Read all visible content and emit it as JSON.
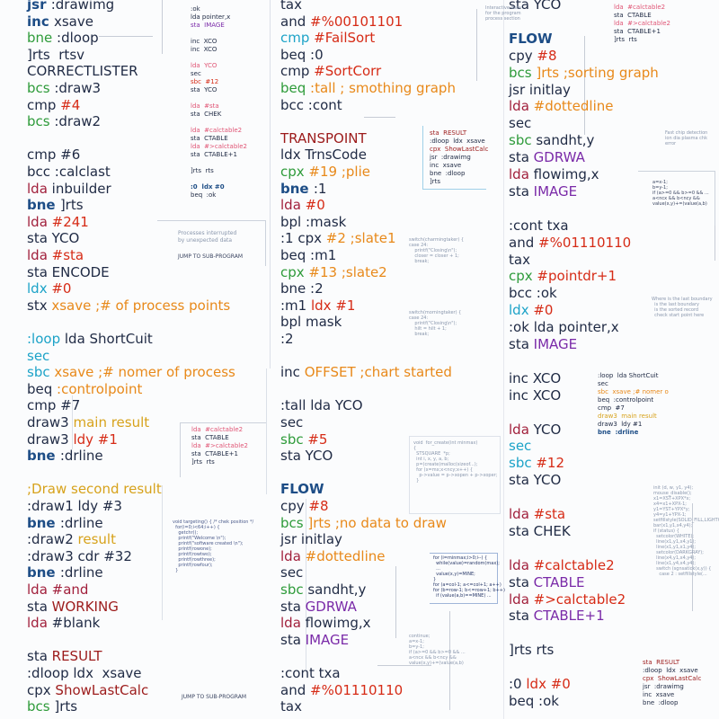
{
  "col1": [
    [
      [
        "jsr ",
        "c-db"
      ],
      [
        ":drawimg",
        "c-k"
      ]
    ],
    [
      [
        "inc ",
        "c-db"
      ],
      [
        "xsave",
        "c-k"
      ]
    ],
    [
      [
        "bne ",
        "c-g"
      ],
      [
        ":dloop",
        "c-k"
      ]
    ],
    [
      [
        "]rts  ",
        "c-k"
      ],
      [
        "rtsv",
        "c-k"
      ]
    ],
    [
      [
        "CORRECTLISTER",
        "c-k"
      ]
    ],
    [
      [
        "bcs ",
        "c-g"
      ],
      [
        ":draw3",
        "c-k"
      ]
    ],
    [
      [
        "cmp ",
        "c-k"
      ],
      [
        "#4",
        "c-r"
      ]
    ],
    [
      [
        "bcs ",
        "c-g"
      ],
      [
        ":draw2",
        "c-k"
      ]
    ],
    [
      [
        "",
        ""
      ]
    ],
    [
      [
        "cmp ",
        "c-k"
      ],
      [
        "#6",
        "c-k"
      ]
    ],
    [
      [
        "bcc ",
        "c-k"
      ],
      [
        ":calclast",
        "c-k"
      ]
    ],
    [
      [
        "lda ",
        "c-m"
      ],
      [
        "inbuilder",
        "c-k"
      ]
    ],
    [
      [
        "bne ",
        "c-db"
      ],
      [
        "]rts",
        "c-k"
      ]
    ],
    [
      [
        "lda ",
        "c-m"
      ],
      [
        "#241",
        "c-r"
      ]
    ],
    [
      [
        "sta ",
        "c-k"
      ],
      [
        "YCO",
        "c-k"
      ]
    ],
    [
      [
        "lda ",
        "c-m"
      ],
      [
        "#sta",
        "c-r"
      ]
    ],
    [
      [
        "sta ",
        "c-k"
      ],
      [
        "ENCODE",
        "c-k"
      ]
    ],
    [
      [
        "ldx ",
        "c-c"
      ],
      [
        "#0",
        "c-r"
      ]
    ],
    [
      [
        "stx ",
        "c-k"
      ],
      [
        "xsave ;# of process points",
        "c-o"
      ]
    ],
    [
      [
        "",
        ""
      ]
    ],
    [
      [
        ":loop ",
        "c-c"
      ],
      [
        "lda ShortCuit",
        "c-k"
      ]
    ],
    [
      [
        "sec",
        "c-c"
      ]
    ],
    [
      [
        "sbc ",
        "c-c"
      ],
      [
        "xsave ;# nomer of process",
        "c-o"
      ]
    ],
    [
      [
        "beq ",
        "c-k"
      ],
      [
        ":controlpoint",
        "c-o"
      ]
    ],
    [
      [
        "cmp ",
        "c-k"
      ],
      [
        "#7",
        "c-k"
      ]
    ],
    [
      [
        "draw3 ",
        "c-k"
      ],
      [
        "main result",
        "c-y"
      ]
    ],
    [
      [
        "draw3 ",
        "c-k"
      ],
      [
        "ldy #1",
        "c-r"
      ]
    ],
    [
      [
        "bne ",
        "c-db"
      ],
      [
        ":drline",
        "c-k"
      ]
    ],
    [
      [
        "",
        ""
      ]
    ],
    [
      [
        ";Draw ",
        "c-y"
      ],
      [
        "second result",
        "c-y"
      ]
    ],
    [
      [
        ":draw1 ",
        "c-k"
      ],
      [
        "ldy #3",
        "c-k"
      ]
    ],
    [
      [
        "bne ",
        "c-db"
      ],
      [
        ":drline",
        "c-k"
      ]
    ],
    [
      [
        ":draw2 ",
        "c-k"
      ],
      [
        "result",
        "c-y"
      ]
    ],
    [
      [
        ":draw3 ",
        "c-k"
      ],
      [
        "cdr #32",
        "c-k"
      ]
    ],
    [
      [
        "bne ",
        "c-db"
      ],
      [
        ":drline",
        "c-k"
      ]
    ],
    [
      [
        "lda #and",
        "c-m"
      ]
    ],
    [
      [
        "sta ",
        "c-k"
      ],
      [
        "WORKING",
        "c-dr"
      ]
    ],
    [
      [
        "lda ",
        "c-m"
      ],
      [
        "#blank",
        "c-k"
      ]
    ],
    [
      [
        "",
        ""
      ]
    ],
    [
      [
        "sta ",
        "c-k"
      ],
      [
        "RESULT",
        "c-dr"
      ]
    ],
    [
      [
        ":dloop ",
        "c-k"
      ],
      [
        "ldx  ",
        "c-k"
      ],
      [
        "xsave",
        "c-k"
      ]
    ],
    [
      [
        "cpx ",
        "c-k"
      ],
      [
        "ShowLastCalc",
        "c-dr"
      ]
    ],
    [
      [
        "bcs ",
        "c-g"
      ],
      [
        "]rts",
        "c-k"
      ]
    ]
  ],
  "col3": [
    [
      [
        "tax ",
        "c-k"
      ]
    ],
    [
      [
        "and ",
        "c-k"
      ],
      [
        "#%00101101",
        "c-r"
      ]
    ],
    [
      [
        "cmp ",
        "c-c"
      ],
      [
        "#FailSort",
        "c-r"
      ]
    ],
    [
      [
        "beq ",
        "c-k"
      ],
      [
        ":0",
        "c-k"
      ]
    ],
    [
      [
        "cmp ",
        "c-k"
      ],
      [
        "#SortCorr",
        "c-r"
      ]
    ],
    [
      [
        "beq ",
        "c-g"
      ],
      [
        ":tall ; smothing graph",
        "c-o"
      ]
    ],
    [
      [
        "bcc ",
        "c-k"
      ],
      [
        ":cont",
        "c-k"
      ]
    ],
    [
      [
        "",
        ""
      ]
    ],
    [
      [
        "TRANSPOINT",
        "c-dr"
      ]
    ],
    [
      [
        "ldx ",
        "c-k"
      ],
      [
        "TrnsCode",
        "c-k"
      ]
    ],
    [
      [
        "cpx ",
        "c-g"
      ],
      [
        "#19 ;plie",
        "c-o"
      ]
    ],
    [
      [
        "bne ",
        "c-db"
      ],
      [
        ":1",
        "c-k"
      ]
    ],
    [
      [
        "lda ",
        "c-m"
      ],
      [
        "#0",
        "c-r"
      ]
    ],
    [
      [
        "bpl ",
        "c-k"
      ],
      [
        ":mask",
        "c-k"
      ]
    ],
    [
      [
        ":1 cpx ",
        "c-k"
      ],
      [
        "#2 ;slate1",
        "c-o"
      ]
    ],
    [
      [
        "beq ",
        "c-k"
      ],
      [
        ":m1",
        "c-k"
      ]
    ],
    [
      [
        "cpx ",
        "c-g"
      ],
      [
        "#13 ;slate2",
        "c-o"
      ]
    ],
    [
      [
        "bne ",
        "c-k"
      ],
      [
        ":2",
        "c-k"
      ]
    ],
    [
      [
        ":m1 ",
        "c-k"
      ],
      [
        "ldx #1",
        "c-r"
      ]
    ],
    [
      [
        "bpl ",
        "c-k"
      ],
      [
        "mask",
        "c-k"
      ]
    ],
    [
      [
        ":2",
        "c-k"
      ]
    ],
    [
      [
        "",
        ""
      ]
    ],
    [
      [
        "inc ",
        "c-k"
      ],
      [
        "OFFSET ;chart started",
        "c-o"
      ]
    ],
    [
      [
        "",
        ""
      ]
    ],
    [
      [
        ":tall ",
        "c-k"
      ],
      [
        "lda YCO",
        "c-k"
      ]
    ],
    [
      [
        "sec",
        "c-k"
      ]
    ],
    [
      [
        "sbc ",
        "c-g"
      ],
      [
        "#5",
        "c-r"
      ]
    ],
    [
      [
        "sta ",
        "c-k"
      ],
      [
        "YCO",
        "c-k"
      ]
    ],
    [
      [
        "",
        ""
      ]
    ],
    [
      [
        "FLOW",
        "c-db"
      ]
    ],
    [
      [
        "cpy ",
        "c-k"
      ],
      [
        "#8",
        "c-r"
      ]
    ],
    [
      [
        "bcs ",
        "c-g"
      ],
      [
        "]rts ;no data to draw",
        "c-o"
      ]
    ],
    [
      [
        "jsr ",
        "c-k"
      ],
      [
        "initlay",
        "c-k"
      ]
    ],
    [
      [
        "lda ",
        "c-m"
      ],
      [
        "#dottedline",
        "c-o"
      ]
    ],
    [
      [
        "sec",
        "c-k"
      ]
    ],
    [
      [
        "sbc ",
        "c-g"
      ],
      [
        "sandht,y",
        "c-k"
      ]
    ],
    [
      [
        "sta ",
        "c-k"
      ],
      [
        "GDRWA",
        "c-pu"
      ]
    ],
    [
      [
        "lda ",
        "c-m"
      ],
      [
        "flowimg,x",
        "c-k"
      ]
    ],
    [
      [
        "sta ",
        "c-k"
      ],
      [
        "IMAGE",
        "c-pu"
      ]
    ],
    [
      [
        "",
        ""
      ]
    ],
    [
      [
        ":cont ",
        "c-k"
      ],
      [
        "txa",
        "c-k"
      ]
    ],
    [
      [
        "and ",
        "c-k"
      ],
      [
        "#%01110110",
        "c-r"
      ]
    ],
    [
      [
        "tax",
        "c-k"
      ]
    ]
  ],
  "col4": [
    [
      [
        "sta ",
        "c-k"
      ],
      [
        "YCO",
        "c-k"
      ]
    ],
    [
      [
        "",
        ""
      ]
    ],
    [
      [
        "FLOW",
        "c-db"
      ]
    ],
    [
      [
        "cpy ",
        "c-k"
      ],
      [
        "#8",
        "c-r"
      ]
    ],
    [
      [
        "bcs ",
        "c-g"
      ],
      [
        "]rts ;sorting graph",
        "c-o"
      ]
    ],
    [
      [
        "jsr ",
        "c-k"
      ],
      [
        "initlay",
        "c-k"
      ]
    ],
    [
      [
        "lda ",
        "c-m"
      ],
      [
        "#dottedline",
        "c-o"
      ]
    ],
    [
      [
        "sec",
        "c-k"
      ]
    ],
    [
      [
        "sbc ",
        "c-g"
      ],
      [
        "sandht,y",
        "c-k"
      ]
    ],
    [
      [
        "sta ",
        "c-k"
      ],
      [
        "GDRWA",
        "c-pu"
      ]
    ],
    [
      [
        "lda ",
        "c-m"
      ],
      [
        "flowimg,x",
        "c-k"
      ]
    ],
    [
      [
        "sta ",
        "c-k"
      ],
      [
        "IMAGE",
        "c-pu"
      ]
    ],
    [
      [
        "",
        ""
      ]
    ],
    [
      [
        ":cont ",
        "c-k"
      ],
      [
        "txa",
        "c-k"
      ]
    ],
    [
      [
        "and ",
        "c-k"
      ],
      [
        "#%01110110",
        "c-r"
      ]
    ],
    [
      [
        "tax",
        "c-k"
      ]
    ],
    [
      [
        "cpx ",
        "c-g"
      ],
      [
        "#pointdr+1",
        "c-r"
      ]
    ],
    [
      [
        "bcc ",
        "c-k"
      ],
      [
        ":ok",
        "c-k"
      ]
    ],
    [
      [
        "ldx ",
        "c-c"
      ],
      [
        "#0",
        "c-r"
      ]
    ],
    [
      [
        ":ok ",
        "c-k"
      ],
      [
        "lda pointer,x",
        "c-k"
      ]
    ],
    [
      [
        "sta ",
        "c-k"
      ],
      [
        "IMAGE",
        "c-pu"
      ]
    ],
    [
      [
        "",
        ""
      ]
    ],
    [
      [
        "inc ",
        "c-k"
      ],
      [
        "XCO",
        "c-k"
      ]
    ],
    [
      [
        "inc ",
        "c-k"
      ],
      [
        "XCO",
        "c-k"
      ]
    ],
    [
      [
        "",
        ""
      ]
    ],
    [
      [
        "lda ",
        "c-m"
      ],
      [
        "YCO",
        "c-k"
      ]
    ],
    [
      [
        "sec",
        "c-c"
      ]
    ],
    [
      [
        "sbc ",
        "c-c"
      ],
      [
        "#12",
        "c-r"
      ]
    ],
    [
      [
        "sta ",
        "c-k"
      ],
      [
        "YCO",
        "c-k"
      ]
    ],
    [
      [
        "",
        ""
      ]
    ],
    [
      [
        "lda ",
        "c-m"
      ],
      [
        "#sta",
        "c-r"
      ]
    ],
    [
      [
        "sta ",
        "c-k"
      ],
      [
        "CHEK",
        "c-k"
      ]
    ],
    [
      [
        "",
        ""
      ]
    ],
    [
      [
        "lda ",
        "c-m"
      ],
      [
        "#calctable2",
        "c-r"
      ]
    ],
    [
      [
        "sta ",
        "c-k"
      ],
      [
        "CTABLE",
        "c-pu"
      ]
    ],
    [
      [
        "lda ",
        "c-m"
      ],
      [
        "#>calctable2",
        "c-r"
      ]
    ],
    [
      [
        "sta ",
        "c-k"
      ],
      [
        "CTABLE+1",
        "c-pu"
      ]
    ],
    [
      [
        "",
        ""
      ]
    ],
    [
      [
        "]rts ",
        "c-k"
      ],
      [
        "rts",
        "c-k"
      ]
    ],
    [
      [
        "",
        ""
      ]
    ],
    [
      [
        ":0 ",
        "c-k"
      ],
      [
        "ldx #0",
        "c-r"
      ]
    ],
    [
      [
        "beq ",
        "c-k"
      ],
      [
        ":ok",
        "c-k"
      ]
    ]
  ],
  "small_blocks": [
    {
      "id": "sb1",
      "lines": [
        [
          ":ok  ",
          "c-k"
        ],
        [
          "lda pointer,x",
          "c-k"
        ],
        [
          "sta  IMAGE",
          "c-pu"
        ],
        [
          "",
          ""
        ],
        [
          "inc  XCO",
          "c-k"
        ],
        [
          "inc  XCO",
          "c-k"
        ],
        [
          "",
          ""
        ],
        [
          "lda  YCO",
          "c-pk"
        ],
        [
          "sec",
          "c-k"
        ],
        [
          "sbc  #12",
          "c-r"
        ],
        [
          "sta  YCO",
          "c-k"
        ],
        [
          "",
          ""
        ],
        [
          "lda  #sta",
          "c-pk"
        ],
        [
          "sta  CHEK",
          "c-k"
        ],
        [
          "",
          ""
        ],
        [
          "lda  #calctable2",
          "c-pk"
        ],
        [
          "sta  CTABLE",
          "c-k"
        ],
        [
          "lda  #>calctable2",
          "c-pk"
        ],
        [
          "sta  CTABLE+1",
          "c-k"
        ],
        [
          "",
          ""
        ],
        [
          "]rts  rts",
          "c-k"
        ],
        [
          "",
          ""
        ],
        [
          ":0  ldx #0",
          "c-db"
        ],
        [
          "beq  :ok",
          "c-k"
        ]
      ]
    },
    {
      "id": "sb2",
      "lines": [
        [
          "lda  #calctable2",
          "c-pk"
        ],
        [
          "sta  CTABLE",
          "c-k"
        ],
        [
          "lda  #>calctable2",
          "c-pk"
        ],
        [
          "sta  CTABLE+1",
          "c-k"
        ],
        [
          "]rts  rts",
          "c-k"
        ]
      ]
    },
    {
      "id": "sb3",
      "lines": [
        [
          "sta  RESULT",
          "c-dr"
        ],
        [
          ":dloop  ldx  xsave",
          "c-k"
        ],
        [
          "cpx  ShowLastCalc",
          "c-dr"
        ],
        [
          "jsr  :drawimg",
          "c-k"
        ],
        [
          "inc  xsave",
          "c-k"
        ],
        [
          "bne  :dloop",
          "c-k"
        ],
        [
          "]rts",
          "c-k"
        ]
      ]
    },
    {
      "id": "sb4",
      "lines": [
        [
          ":loop  lda ShortCuit",
          "c-k"
        ],
        [
          "sec",
          "c-k"
        ],
        [
          "sbc  xsave ;# nomer o",
          "c-o"
        ],
        [
          "beq  :controlpoint",
          "c-k"
        ],
        [
          "cmp  #7",
          "c-k"
        ],
        [
          "draw3  main result",
          "c-y"
        ],
        [
          "draw3  ldy #1",
          "c-k"
        ],
        [
          "bne  :drline",
          "c-db"
        ]
      ]
    },
    {
      "id": "sb5",
      "lines": [
        [
          "sta  RESULT",
          "c-dr"
        ],
        [
          ":dloop  ldx  xsave",
          "c-k"
        ],
        [
          "cpx  ShowLastCalc",
          "c-dr"
        ],
        [
          "jsr  :drawimg",
          "c-k"
        ],
        [
          "inc  xsave",
          "c-k"
        ],
        [
          "bne  :dloop",
          "c-k"
        ]
      ]
    }
  ],
  "tiny_texts": {
    "interrupted1": "Processes interrupted",
    "interrupted2": "by unexpected data",
    "jump1": "JUMP TO SUB-PROGRAM",
    "jump2": "JUMP TO SUB-PROGRAM",
    "sw1": [
      "switch(charmingtaker) {",
      "case 24:",
      "    printf(\"Closing\\n\");",
      "    closer = closer + 1;",
      "    break;"
    ],
    "sw2": [
      "switch(morningtaker) {",
      "case 24:",
      "    printf(\"Closing\\n\");",
      "    hilt = hilt + 1;",
      "    break;"
    ],
    "tg": [
      "void targeting() { /* chek position */",
      "  for(i=0;i<64;i++) {",
      "    getchr();",
      "    printf(\"Welcome \\n\");",
      "    printf(\"software created \\n\");",
      "    printf(rowone);",
      "    printf(rowtwo);",
      "    printf(rowthree);",
      "    printf(rowfour);",
      "  }"
    ],
    "fn": [
      "void  for_create(int minmax)",
      "{",
      "  STSQUARE  *p;",
      "  int i, x, y, a, b;",
      "  p=(create)malloc(sizeof...);",
      "  for (x=mx;x<ncy;x++) {",
      "    p->value = p->xopen + p->xoper;",
      "  }"
    ],
    "loopb": [
      "for (i=minmax;i>0;i--) {",
      "  while(value)=random(max);",
      "  ...",
      "  value(x,y)=MINE;",
      "}",
      "for (a=col-1; a<=col+1; a++)",
      "for (b=row-1; b<=row+1; b++)",
      "  if (value(a,b)==MINE) ..."
    ],
    "cont": [
      "continue;",
      "a=x-1;",
      "b=y-1;",
      "if (a>=0 && b>=0 && ...",
      "a<ncx && b<ncy &&",
      "value(x,y)+=(value(a,b)"
    ],
    "rightmid": [
      "a=x-1;",
      "b=y-1;",
      "if (a>=0 && b>=0 && ...",
      "a<ncx && b<ncy &&",
      "value(x,y)+=(value(a,b)"
    ],
    "rightlow": [
      "init (d, w, y1, y4);",
      "",
      "mouse_disable();",
      "x1=XST+XPX*x;",
      "x4=x1+XPX-1;",
      "y1=YST+YPX*y;",
      "y4=y1+YPX-1;",
      "setfillstyle(SOLID_FILL,LIGHTGRAY);",
      "bar(x1,y1,x4,y4);",
      "if (status) {",
      "  setcolor(WHITE);",
      "  line(x1,y1,x4,y1);",
      "  line(x1,y1,x1,y4);",
      "  setcolor(DARKGRAY);",
      "  line(x4,y1,x4,y4);",
      "  line(x1,y4,x4,y4);",
      "  switch (sgnsatick(x,y)) {",
      "    case 2 : setfillstyle(..."
    ],
    "topright": [
      "Interactive data",
      "for the program",
      "process section"
    ],
    "midright": [
      "Fast chip detection",
      "ion dia plasma chk",
      "error"
    ],
    "small_note": [
      "Where is the last boundary",
      "  is the last boundary",
      "  is the sorted record",
      "  check start point here"
    ]
  }
}
